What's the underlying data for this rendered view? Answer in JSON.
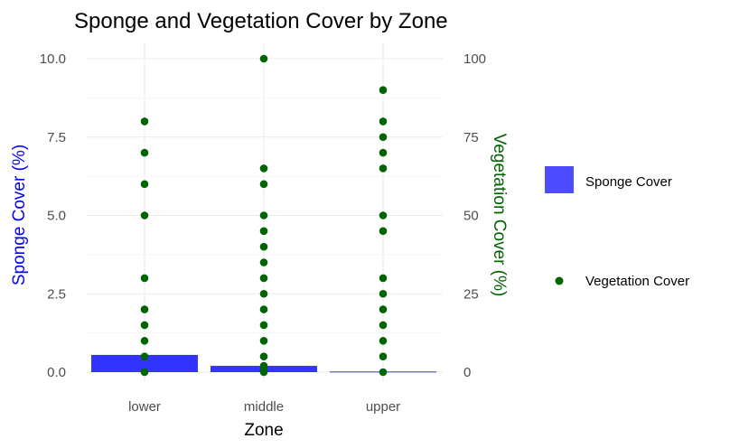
{
  "chart_data": {
    "type": "bar+scatter",
    "title": "Sponge and Vegetation Cover by Zone",
    "xlabel": "Zone",
    "ylabel_left": "Sponge Cover (%)",
    "ylabel_right": "Vegetation Cover (%)",
    "categories": [
      "lower",
      "middle",
      "upper"
    ],
    "y_left": {
      "lim": [
        0,
        10
      ],
      "ticks": [
        "0.0",
        "2.5",
        "5.0",
        "7.5",
        "10.0"
      ],
      "tick_values": [
        0,
        2.5,
        5,
        7.5,
        10
      ]
    },
    "y_right": {
      "lim": [
        0,
        100
      ],
      "ticks": [
        "0",
        "25",
        "50",
        "75",
        "100"
      ],
      "tick_values": [
        0,
        25,
        50,
        75,
        100
      ]
    },
    "grid": true,
    "legend_position": "right",
    "series": [
      {
        "name": "Sponge Cover",
        "kind": "bar",
        "axis": "left",
        "color": "#0000ff",
        "legend_color": "#4d4dff",
        "values": [
          0.55,
          0.2,
          0.02
        ]
      },
      {
        "name": "Vegetation Cover",
        "kind": "points",
        "axis": "right",
        "color": "#006400",
        "points": {
          "lower": [
            0,
            5,
            10,
            15,
            20,
            30,
            50,
            60,
            70,
            80
          ],
          "middle": [
            0,
            1,
            2,
            5,
            10,
            15,
            20,
            25,
            30,
            35,
            40,
            45,
            50,
            60,
            65,
            100
          ],
          "upper": [
            0,
            5,
            10,
            15,
            20,
            25,
            30,
            45,
            50,
            65,
            70,
            75,
            80,
            90
          ]
        }
      }
    ]
  }
}
